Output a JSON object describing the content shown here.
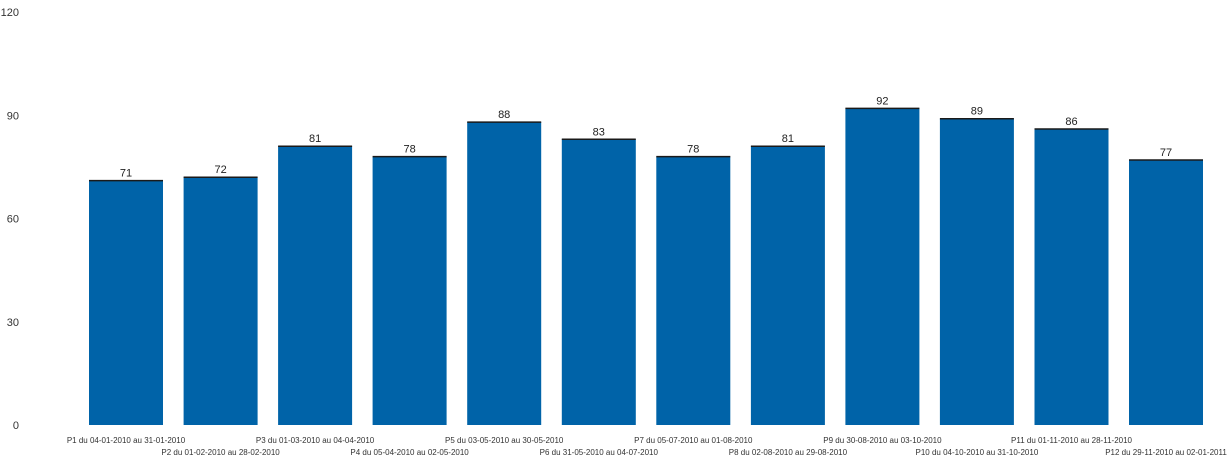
{
  "chart_data": {
    "type": "bar",
    "title": "",
    "xlabel": "",
    "ylabel": "",
    "ylim": [
      0,
      120
    ],
    "yticks": [
      0,
      30,
      60,
      90,
      120
    ],
    "grid": false,
    "legend": "none",
    "bar_color": "#0063a8",
    "categories": [
      "P1  du 04-01-2010 au 31-01-2010",
      "P2  du 01-02-2010 au 28-02-2010",
      "P3  du 01-03-2010 au 04-04-2010",
      "P4  du 05-04-2010 au 02-05-2010",
      "P5  du 03-05-2010 au 30-05-2010",
      "P6  du 31-05-2010 au 04-07-2010",
      "P7  du 05-07-2010 au 01-08-2010",
      "P8  du 02-08-2010 au 29-08-2010",
      "P9  du 30-08-2010 au 03-10-2010",
      "P10  du 04-10-2010 au 31-10-2010",
      "P11  du 01-11-2010 au 28-11-2010",
      "P12  du 29-11-2010 au 02-01-2011"
    ],
    "values": [
      71,
      72,
      81,
      78,
      88,
      83,
      78,
      81,
      92,
      89,
      86,
      77
    ]
  }
}
